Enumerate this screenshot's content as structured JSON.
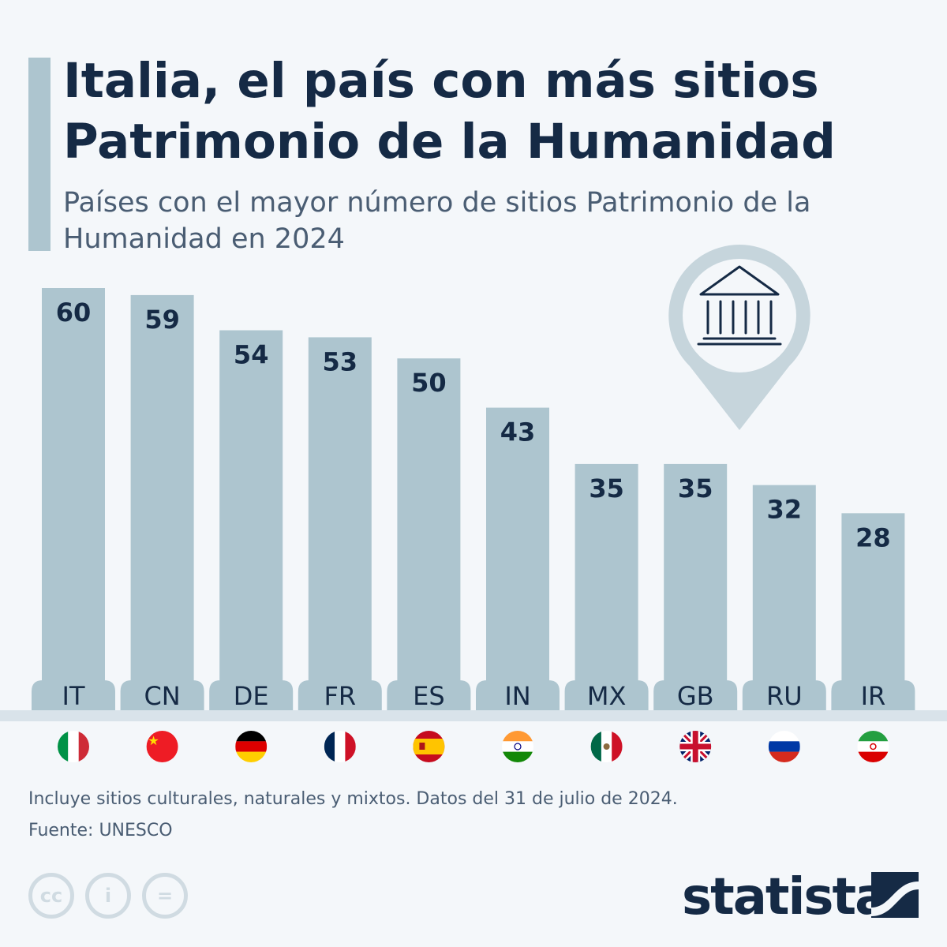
{
  "title": "Italia, el país con más sitios Patrimonio de la Humanidad",
  "subtitle": "Países con el mayor número de sitios Patrimonio de la Humanidad en 2024",
  "note": "Incluye sitios culturales, naturales y mixtos. Datos del 31 de julio de 2024.",
  "source": "Fuente: UNESCO",
  "brand": "statista",
  "colors": {
    "bar": "#adc5cf",
    "text": "#152a45",
    "background": "#f4f7fa"
  },
  "icons": [
    "landmark-pin-icon",
    "cc-icon",
    "attribution-icon",
    "no-derivatives-icon",
    "statista-logo-icon"
  ],
  "chart_data": {
    "type": "bar",
    "categories": [
      "IT",
      "CN",
      "DE",
      "FR",
      "ES",
      "IN",
      "MX",
      "GB",
      "RU",
      "IR"
    ],
    "values": [
      60,
      59,
      54,
      53,
      50,
      43,
      35,
      35,
      32,
      28
    ],
    "flags": [
      "italy-flag-icon",
      "china-flag-icon",
      "germany-flag-icon",
      "france-flag-icon",
      "spain-flag-icon",
      "india-flag-icon",
      "mexico-flag-icon",
      "uk-flag-icon",
      "russia-flag-icon",
      "iran-flag-icon"
    ],
    "ylim": [
      0,
      60
    ],
    "grid": false,
    "data_labels": true
  }
}
